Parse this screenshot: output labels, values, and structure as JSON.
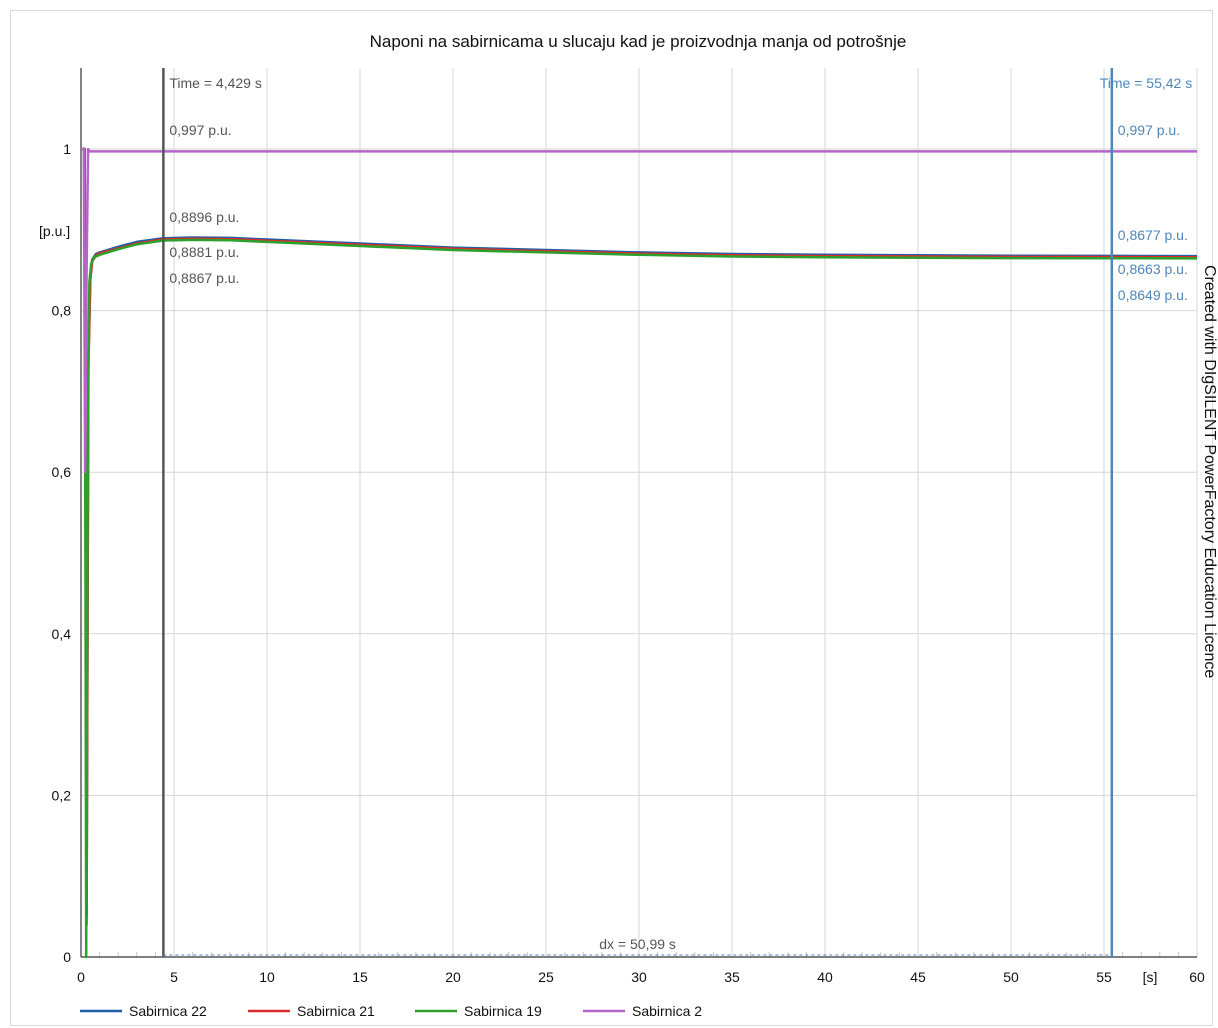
{
  "chart_data": {
    "type": "line",
    "title": "Naponi na sabirnicama u slucaju kad je proizvodnja manja od potrošnje",
    "xlabel": "[s]",
    "ylabel": "[p.u.]",
    "xlim": [
      0,
      60
    ],
    "ylim": [
      0,
      1.1
    ],
    "x_ticks": [
      0,
      5,
      10,
      15,
      20,
      25,
      30,
      35,
      40,
      45,
      50,
      55,
      60
    ],
    "x_tick_labels": [
      "0",
      "5",
      "10",
      "15",
      "20",
      "25",
      "30",
      "35",
      "40",
      "45",
      "50",
      "55",
      "60"
    ],
    "y_ticks": [
      0,
      0.2,
      0.4,
      0.6,
      0.8,
      1
    ],
    "y_tick_labels": [
      "0",
      "0,2",
      "0,4",
      "0,6",
      "0,8",
      "1"
    ],
    "grid": true,
    "legend_position": "bottom",
    "series": [
      {
        "name": "Sabirnica 22",
        "color": "#1f5fa6",
        "x": [
          0,
          0.2,
          0.3,
          0.35,
          0.4,
          0.5,
          0.6,
          0.8,
          1,
          2,
          3,
          4.429,
          6,
          8,
          10,
          15,
          20,
          25,
          30,
          35,
          40,
          45,
          50,
          55.42,
          60
        ],
        "y": [
          1,
          1,
          0.05,
          0.4,
          0.74,
          0.84,
          0.863,
          0.87,
          0.872,
          0.879,
          0.885,
          0.8896,
          0.8905,
          0.89,
          0.888,
          0.883,
          0.878,
          0.875,
          0.872,
          0.87,
          0.869,
          0.8685,
          0.868,
          0.8677,
          0.8675
        ]
      },
      {
        "name": "Sabirnica 21",
        "color": "#e02b2b",
        "x": [
          0,
          0.2,
          0.3,
          0.35,
          0.4,
          0.5,
          0.6,
          0.8,
          1,
          2,
          3,
          4.429,
          6,
          8,
          10,
          15,
          20,
          25,
          30,
          35,
          40,
          45,
          50,
          55.42,
          60
        ],
        "y": [
          1,
          1,
          0.04,
          0.39,
          0.73,
          0.838,
          0.861,
          0.868,
          0.871,
          0.877,
          0.883,
          0.8881,
          0.889,
          0.8885,
          0.8865,
          0.8815,
          0.8765,
          0.8735,
          0.8705,
          0.8685,
          0.8675,
          0.867,
          0.8665,
          0.8663,
          0.866
        ]
      },
      {
        "name": "Sabirnica 19",
        "color": "#2ca02c",
        "x": [
          0,
          0.2,
          0.28,
          0.33,
          0.38,
          0.45,
          0.55,
          0.7,
          1,
          2,
          3,
          4.429,
          6,
          8,
          10,
          15,
          20,
          25,
          30,
          35,
          40,
          45,
          50,
          55.42,
          60
        ],
        "y": [
          1,
          1,
          0,
          0.41,
          0.72,
          0.835,
          0.858,
          0.866,
          0.869,
          0.876,
          0.882,
          0.8867,
          0.8875,
          0.887,
          0.885,
          0.88,
          0.875,
          0.872,
          0.869,
          0.867,
          0.866,
          0.8655,
          0.865,
          0.8649,
          0.8646
        ]
      },
      {
        "name": "Sabirnica 2",
        "color": "#b565c6",
        "x": [
          0,
          0.15,
          0.22,
          0.3,
          0.38,
          0.45,
          1,
          4.429,
          10,
          20,
          30,
          40,
          50,
          55.42,
          60
        ],
        "y": [
          1,
          1,
          0.6,
          0.85,
          1,
          0.997,
          0.997,
          0.997,
          0.997,
          0.997,
          0.997,
          0.997,
          0.997,
          0.997,
          0.997
        ]
      }
    ],
    "cursors": [
      {
        "time": 4.429,
        "label": "Time = 4,429 s",
        "color": "#555555",
        "values": [
          "0,997 p.u.",
          "0,8896 p.u.",
          "0,8881 p.u.",
          "0,8867 p.u."
        ]
      },
      {
        "time": 55.42,
        "label": "Time = 55,42 s",
        "color": "#4f86b8",
        "values": [
          "0,997 p.u.",
          "0,8677 p.u.",
          "0,8663 p.u.",
          "0,8649 p.u."
        ]
      }
    ],
    "dx_label": "dx = 50,99 s",
    "watermark": "Created with DIgSILENT PowerFactory Education Licence"
  }
}
